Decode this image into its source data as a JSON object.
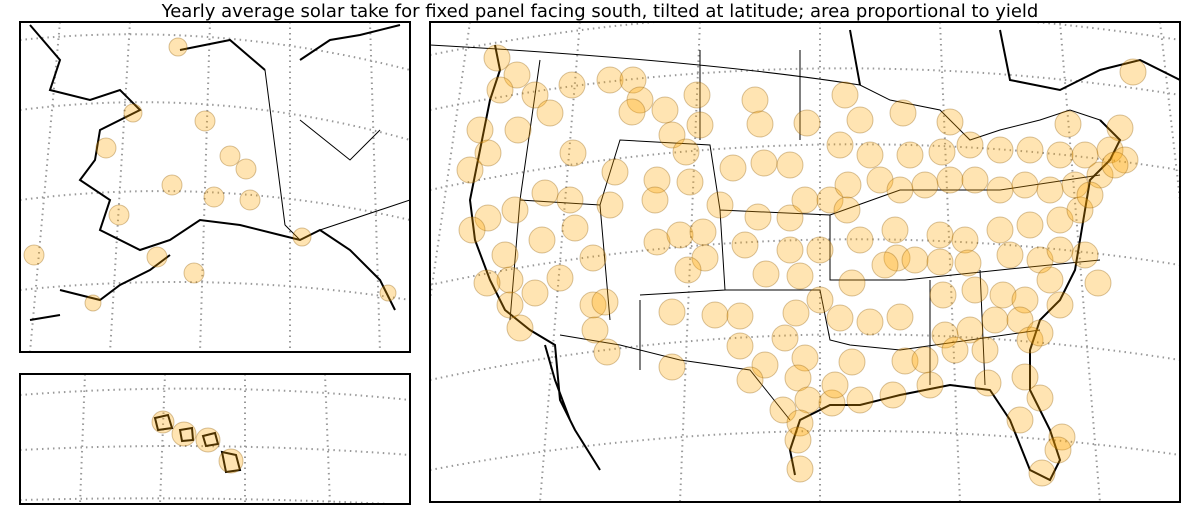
{
  "title": "Yearly average solar take for fixed panel facing south, tilted at latitude; area proportional to yield"
}
